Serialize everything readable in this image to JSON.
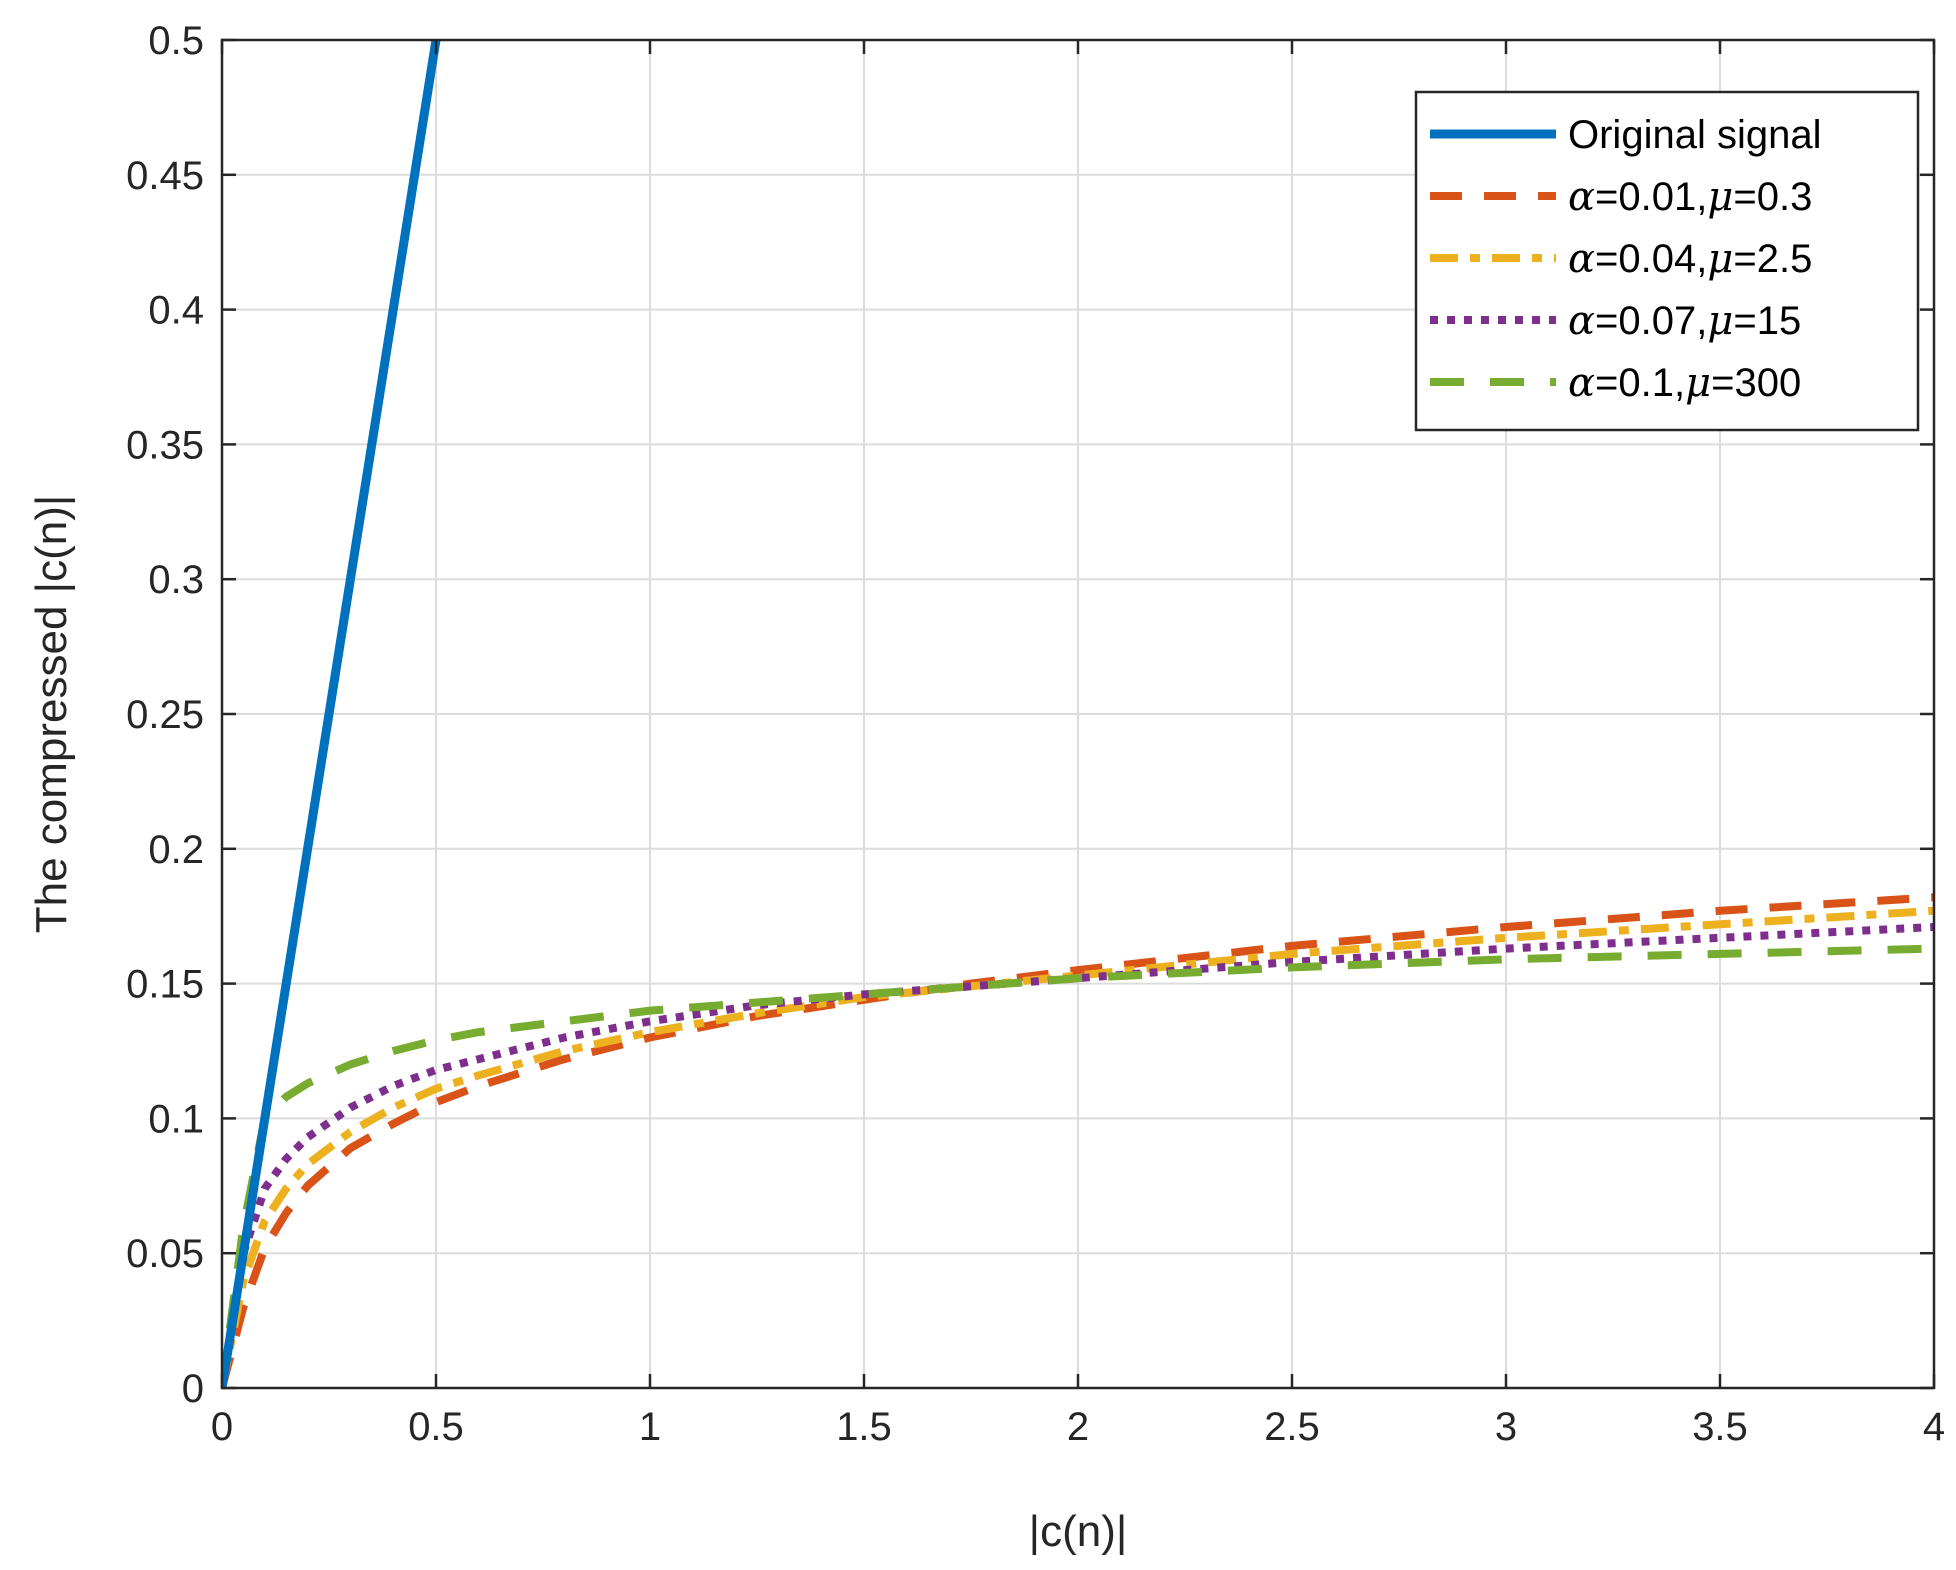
{
  "chart_data": {
    "type": "line",
    "title": "",
    "xlabel": "|c(n)|",
    "ylabel": "The compressed |c(n)|",
    "xlim": [
      0,
      4
    ],
    "ylim": [
      0,
      0.5
    ],
    "grid": true,
    "x_ticks": [
      "0",
      "0.5",
      "1",
      "1.5",
      "2",
      "2.5",
      "3",
      "3.5",
      "4"
    ],
    "y_ticks": [
      "0",
      "0.05",
      "0.1",
      "0.15",
      "0.2",
      "0.25",
      "0.3",
      "0.35",
      "0.4",
      "0.45",
      "0.5"
    ],
    "legend_position": "top-right",
    "series": [
      {
        "name": "Original signal",
        "label_parts": [
          "Original signal"
        ],
        "color": "#0072BD",
        "style": "solid",
        "x": [
          0,
          0.5
        ],
        "y": [
          0,
          0.5
        ]
      },
      {
        "name": "α=0.01,μ=0.3",
        "label_parts": [
          "α",
          "=0.01,",
          "μ",
          "=0.3"
        ],
        "color": "#D95319",
        "style": "dashed",
        "x": [
          0,
          0.05,
          0.1,
          0.15,
          0.2,
          0.3,
          0.4,
          0.5,
          0.6,
          0.8,
          1.0,
          1.25,
          1.5,
          1.75,
          2.0,
          2.5,
          3.0,
          3.5,
          4.0
        ],
        "y": [
          0,
          0.03,
          0.052,
          0.065,
          0.075,
          0.089,
          0.098,
          0.106,
          0.112,
          0.122,
          0.13,
          0.138,
          0.144,
          0.15,
          0.155,
          0.164,
          0.171,
          0.177,
          0.182
        ]
      },
      {
        "name": "α=0.04,μ=2.5",
        "label_parts": [
          "α",
          "=0.04,",
          "μ",
          "=2.5"
        ],
        "color": "#EDB120",
        "style": "dashdot",
        "x": [
          0,
          0.05,
          0.1,
          0.15,
          0.2,
          0.3,
          0.4,
          0.5,
          0.6,
          0.8,
          1.0,
          1.25,
          1.5,
          1.75,
          2.0,
          2.5,
          3.0,
          3.5,
          4.0
        ],
        "y": [
          0,
          0.04,
          0.062,
          0.074,
          0.083,
          0.095,
          0.104,
          0.111,
          0.116,
          0.125,
          0.132,
          0.139,
          0.145,
          0.149,
          0.153,
          0.161,
          0.167,
          0.172,
          0.177
        ]
      },
      {
        "name": "α=0.07,μ=15",
        "label_parts": [
          "α",
          "=0.07,",
          "μ",
          "=15"
        ],
        "color": "#7E2F8E",
        "style": "dotted",
        "x": [
          0,
          0.05,
          0.1,
          0.15,
          0.2,
          0.3,
          0.4,
          0.5,
          0.6,
          0.8,
          1.0,
          1.25,
          1.5,
          1.75,
          2.0,
          2.5,
          3.0,
          3.5,
          4.0
        ],
        "y": [
          0,
          0.05,
          0.074,
          0.085,
          0.093,
          0.104,
          0.112,
          0.118,
          0.122,
          0.13,
          0.136,
          0.142,
          0.146,
          0.149,
          0.152,
          0.158,
          0.163,
          0.167,
          0.171
        ]
      },
      {
        "name": "α=0.1,μ=300",
        "label_parts": [
          "α",
          "=0.1,",
          "μ",
          "=300"
        ],
        "color": "#77AC30",
        "style": "longdash",
        "x": [
          0,
          0.05,
          0.1,
          0.15,
          0.2,
          0.3,
          0.4,
          0.5,
          0.6,
          0.8,
          1.0,
          1.25,
          1.5,
          1.75,
          2.0,
          2.5,
          3.0,
          3.5,
          4.0
        ],
        "y": [
          0,
          0.06,
          0.1,
          0.108,
          0.113,
          0.12,
          0.125,
          0.129,
          0.132,
          0.136,
          0.14,
          0.143,
          0.146,
          0.149,
          0.152,
          0.156,
          0.159,
          0.161,
          0.163
        ]
      }
    ]
  }
}
